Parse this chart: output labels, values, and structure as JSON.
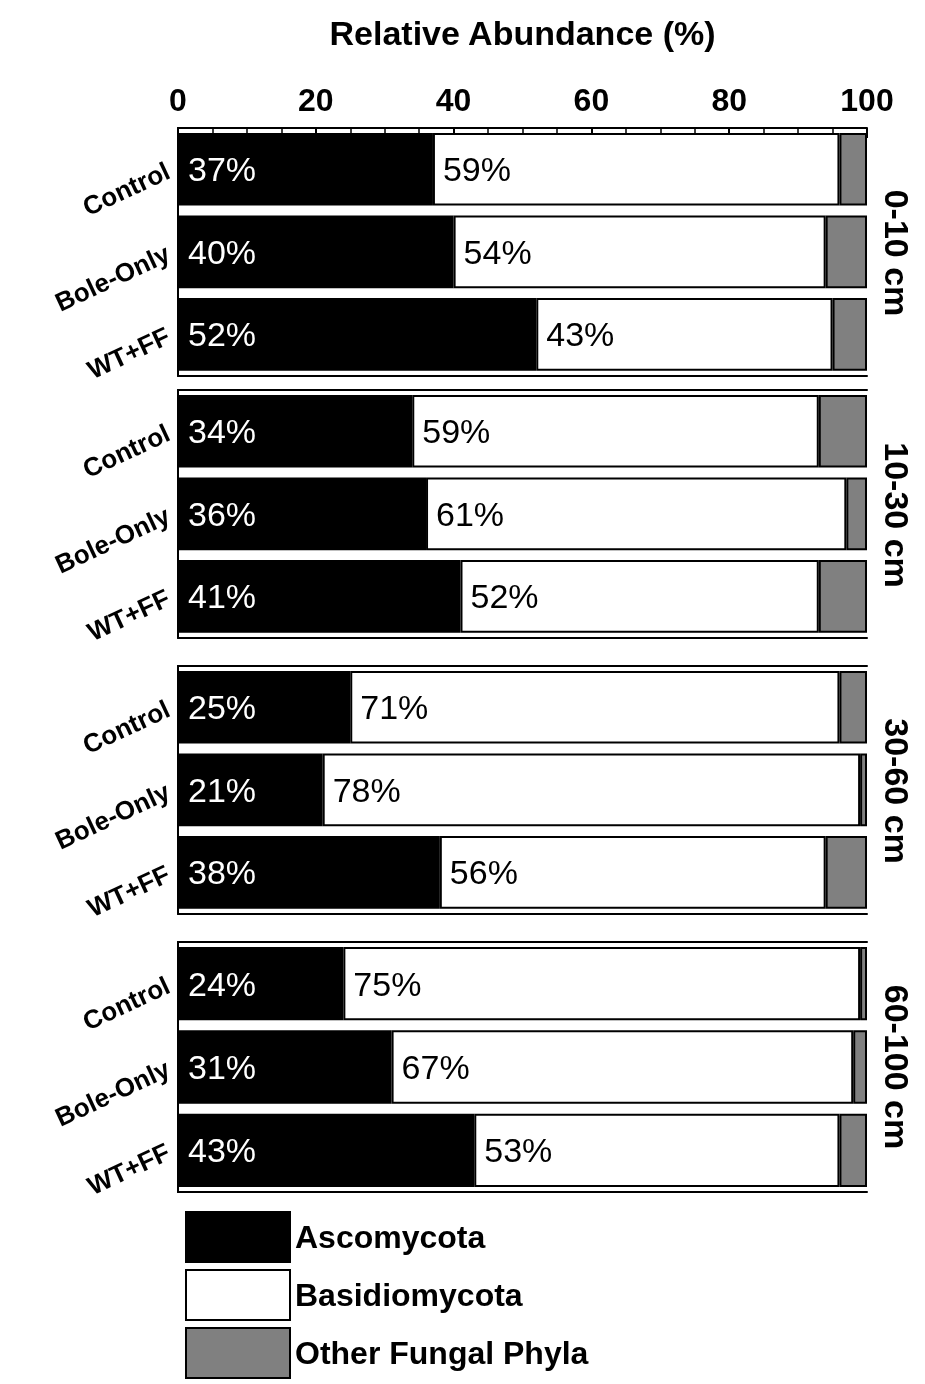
{
  "chart_data": [
    {
      "type": "bar",
      "orientation": "horizontal",
      "stacked": true,
      "title": "0-10 cm",
      "xlabel": "Relative Abundance (%)",
      "categories": [
        "Control",
        "Bole-Only",
        "WT+FF"
      ],
      "xlim": [
        0,
        100
      ],
      "xticks": [
        0,
        20,
        40,
        60,
        80,
        100
      ],
      "legend": false,
      "series": [
        {
          "color": "#000000",
          "values": [
            37,
            40,
            52
          ],
          "value_labels": [
            "37%",
            "40%",
            "52%"
          ]
        },
        {
          "color": "#ffffff",
          "values": [
            59,
            54,
            43
          ],
          "value_labels": [
            "59%",
            "54%",
            "43%"
          ]
        },
        {
          "color": "#808080",
          "values": [
            4,
            6,
            5
          ]
        }
      ]
    },
    {
      "type": "bar",
      "orientation": "horizontal",
      "stacked": true,
      "title": "10-30 cm",
      "categories": [
        "Control",
        "Bole-Only",
        "WT+FF"
      ],
      "xlim": [
        0,
        100
      ],
      "tick_labels": "y",
      "legend": false,
      "series": [
        {
          "color": "#000000",
          "values": [
            34,
            36,
            41
          ],
          "value_labels": [
            "34%",
            "36%",
            "41%"
          ]
        },
        {
          "color": "#ffffff",
          "values": [
            59,
            61,
            52
          ],
          "value_labels": [
            "59%",
            "61%",
            "52%"
          ]
        },
        {
          "color": "#808080",
          "values": [
            7,
            3,
            7
          ]
        }
      ]
    },
    {
      "type": "bar",
      "orientation": "horizontal",
      "stacked": true,
      "title": "30-60 cm",
      "categories": [
        "Control",
        "Bole-Only",
        "WT+FF"
      ],
      "xlim": [
        0,
        100
      ],
      "tick_labels": "y",
      "legend": false,
      "series": [
        {
          "color": "#000000",
          "values": [
            25,
            21,
            38
          ],
          "value_labels": [
            "25%",
            "21%",
            "38%"
          ]
        },
        {
          "color": "#ffffff",
          "values": [
            71,
            78,
            56
          ],
          "value_labels": [
            "71%",
            "78%",
            "56%"
          ]
        },
        {
          "color": "#808080",
          "values": [
            4,
            1,
            6
          ]
        }
      ]
    },
    {
      "type": "bar",
      "orientation": "horizontal",
      "stacked": true,
      "title": "60-100 cm",
      "categories": [
        "Control",
        "Bole-Only",
        "WT+FF"
      ],
      "xlim": [
        0,
        100
      ],
      "tick_labels": "y",
      "legend": "bottom",
      "series": [
        {
          "name": "Ascomycota",
          "color": "#000000",
          "values": [
            24,
            31,
            43
          ],
          "value_labels": [
            "24%",
            "31%",
            "43%"
          ]
        },
        {
          "name": "Basidiomycota",
          "color": "#ffffff",
          "values": [
            75,
            67,
            53
          ],
          "value_labels": [
            "75%",
            "67%",
            "53%"
          ]
        },
        {
          "name": "Other Fungal Phyla",
          "color": "#808080",
          "values": [
            1,
            2,
            4
          ]
        }
      ]
    }
  ]
}
